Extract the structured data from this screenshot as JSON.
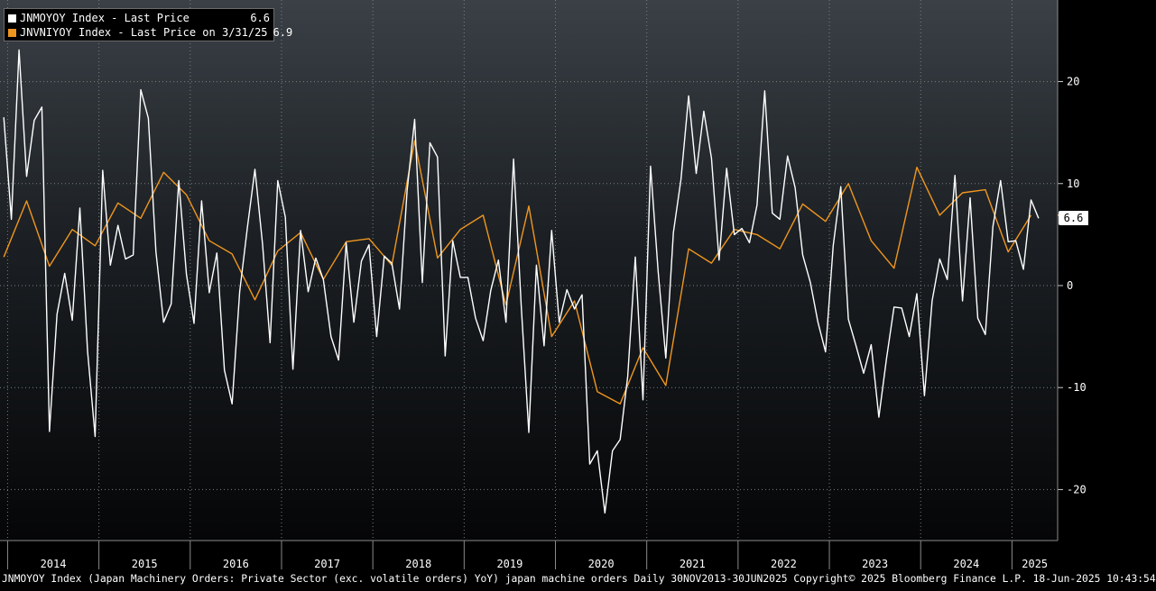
{
  "chart_data": {
    "type": "line",
    "title": "",
    "ylim": [
      -25,
      28
    ],
    "y_ticks": [
      20,
      10,
      0,
      -10,
      -20
    ],
    "y_tick_labels": [
      "20",
      "10",
      "0",
      "-10",
      "-20"
    ],
    "x_tick_labels": [
      "2014",
      "2015",
      "2016",
      "2017",
      "2018",
      "2019",
      "2020",
      "2021",
      "2022",
      "2023",
      "2024",
      "2025"
    ],
    "x_range": [
      "2013-12-01",
      "2025-06-30"
    ],
    "grid": true,
    "legend_position": "top-left",
    "series": [
      {
        "name": "JNMOYOY Index - Last Price",
        "color": "#ffffff",
        "last_value": "6.6",
        "x": [
          "2013-12",
          "2014-01",
          "2014-02",
          "2014-03",
          "2014-04",
          "2014-05",
          "2014-06",
          "2014-07",
          "2014-08",
          "2014-09",
          "2014-10",
          "2014-11",
          "2014-12",
          "2015-01",
          "2015-02",
          "2015-03",
          "2015-04",
          "2015-05",
          "2015-06",
          "2015-07",
          "2015-08",
          "2015-09",
          "2015-10",
          "2015-11",
          "2015-12",
          "2016-01",
          "2016-02",
          "2016-03",
          "2016-04",
          "2016-05",
          "2016-06",
          "2016-07",
          "2016-08",
          "2016-09",
          "2016-10",
          "2016-11",
          "2016-12",
          "2017-01",
          "2017-02",
          "2017-03",
          "2017-04",
          "2017-05",
          "2017-06",
          "2017-07",
          "2017-08",
          "2017-09",
          "2017-10",
          "2017-11",
          "2017-12",
          "2018-01",
          "2018-02",
          "2018-03",
          "2018-04",
          "2018-05",
          "2018-06",
          "2018-07",
          "2018-08",
          "2018-09",
          "2018-10",
          "2018-11",
          "2018-12",
          "2019-01",
          "2019-02",
          "2019-03",
          "2019-04",
          "2019-05",
          "2019-06",
          "2019-07",
          "2019-08",
          "2019-09",
          "2019-10",
          "2019-11",
          "2019-12",
          "2020-01",
          "2020-02",
          "2020-03",
          "2020-04",
          "2020-05",
          "2020-06",
          "2020-07",
          "2020-08",
          "2020-09",
          "2020-10",
          "2020-11",
          "2020-12",
          "2021-01",
          "2021-02",
          "2021-03",
          "2021-04",
          "2021-05",
          "2021-06",
          "2021-07",
          "2021-08",
          "2021-09",
          "2021-10",
          "2021-11",
          "2021-12",
          "2022-01",
          "2022-02",
          "2022-03",
          "2022-04",
          "2022-05",
          "2022-06",
          "2022-07",
          "2022-08",
          "2022-09",
          "2022-10",
          "2022-11",
          "2022-12",
          "2023-01",
          "2023-02",
          "2023-03",
          "2023-04",
          "2023-05",
          "2023-06",
          "2023-07",
          "2023-08",
          "2023-09",
          "2023-10",
          "2023-11",
          "2023-12",
          "2024-01",
          "2024-02",
          "2024-03",
          "2024-04",
          "2024-05",
          "2024-06",
          "2024-07",
          "2024-08",
          "2024-09",
          "2024-10",
          "2024-11",
          "2024-12",
          "2025-01",
          "2025-02",
          "2025-03",
          "2025-04"
        ],
        "values": [
          16.5,
          6.5,
          23.1,
          10.7,
          16.2,
          17.5,
          -14.3,
          -2.8,
          1.2,
          -3.4,
          7.6,
          -6.4,
          -14.8,
          11.3,
          2.0,
          5.9,
          2.6,
          3.0,
          19.2,
          16.4,
          3.3,
          -3.6,
          -1.8,
          10.3,
          1.1,
          -3.7,
          8.3,
          -0.7,
          3.2,
          -8.3,
          -11.6,
          -0.6,
          5.6,
          11.4,
          4.1,
          -5.6,
          10.3,
          6.7,
          -8.2,
          5.4,
          -0.6,
          2.7,
          0.6,
          -5.0,
          -7.3,
          4.2,
          -3.6,
          2.4,
          4.0,
          -5.0,
          2.9,
          2.2,
          -2.3,
          9.3,
          16.3,
          0.3,
          14.0,
          12.6,
          -6.9,
          4.4,
          0.8,
          0.8,
          -3.2,
          -5.4,
          -0.5,
          2.5,
          -3.6,
          12.4,
          -2.0,
          -14.4,
          2.0,
          -5.9,
          5.4,
          -3.6,
          -0.4,
          -2.3,
          -0.9,
          -17.5,
          -16.2,
          -22.3,
          -16.2,
          -15.1,
          -8.9,
          2.8,
          -11.2,
          11.7,
          1.4,
          -7.1,
          5.2,
          10.4,
          18.6,
          11.0,
          17.1,
          12.5,
          2.5,
          11.5,
          5.0,
          5.6,
          4.2,
          7.9,
          19.1,
          7.1,
          6.5,
          12.7,
          9.6,
          3.0,
          0.3,
          -3.6,
          -6.5,
          3.9,
          9.7,
          -3.3,
          -5.9,
          -8.6,
          -5.8,
          -12.9,
          -7.2,
          -2.1,
          -2.2,
          -5.0,
          -0.8,
          -10.8,
          -1.5,
          2.6,
          0.6,
          10.8,
          -1.5,
          8.6,
          -3.2,
          -4.8,
          5.8,
          10.3,
          4.3,
          4.4,
          1.6,
          8.4,
          6.6
        ]
      },
      {
        "name": "JNVNIYOY Index - Last Price on 3/31/25",
        "color": "#f0961e",
        "last_value": "6.9",
        "x": [
          "2013-12",
          "2014-03",
          "2014-06",
          "2014-09",
          "2014-12",
          "2015-03",
          "2015-06",
          "2015-09",
          "2015-12",
          "2016-03",
          "2016-06",
          "2016-09",
          "2016-12",
          "2017-03",
          "2017-06",
          "2017-09",
          "2017-12",
          "2018-03",
          "2018-06",
          "2018-09",
          "2018-12",
          "2019-03",
          "2019-06",
          "2019-09",
          "2019-12",
          "2020-03",
          "2020-06",
          "2020-09",
          "2020-12",
          "2021-03",
          "2021-06",
          "2021-09",
          "2021-12",
          "2022-03",
          "2022-06",
          "2022-09",
          "2022-12",
          "2023-03",
          "2023-06",
          "2023-09",
          "2023-12",
          "2024-03",
          "2024-06",
          "2024-09",
          "2024-12",
          "2025-03"
        ],
        "values": [
          2.8,
          8.3,
          1.9,
          5.5,
          3.9,
          8.1,
          6.6,
          11.1,
          8.9,
          4.4,
          3.1,
          -1.4,
          3.4,
          5.2,
          0.6,
          4.3,
          4.6,
          2.0,
          14.2,
          2.7,
          5.5,
          6.9,
          -1.9,
          7.8,
          -5.0,
          -1.5,
          -10.4,
          -11.6,
          -6.1,
          -9.8,
          3.6,
          2.2,
          5.5,
          5.0,
          3.6,
          8.0,
          6.3,
          10.0,
          4.4,
          1.7,
          11.6,
          6.9,
          9.1,
          9.4,
          3.3,
          6.9
        ]
      }
    ],
    "last_price_tag": "6.6"
  },
  "footer": {
    "text": "JNMOYOY Index (Japan Machinery Orders: Private Sector (exc. volatile orders) YoY) japan machine orders  Daily 30NOV2013-30JUN2025 Copyright© 2025 Bloomberg Finance L.P. 18-Jun-2025 10:43:54"
  }
}
